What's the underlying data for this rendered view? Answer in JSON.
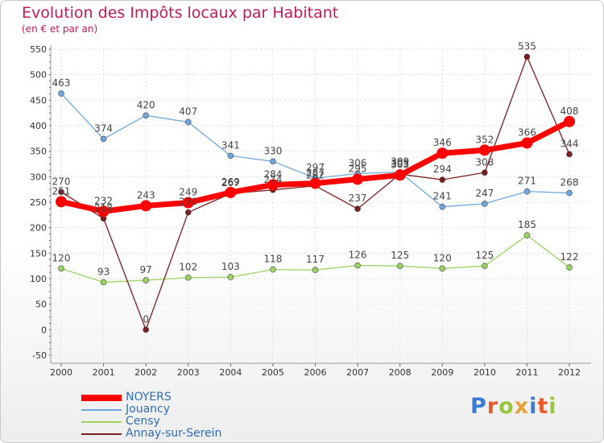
{
  "title": "Evolution des Impôts locaux par Habitant",
  "subtitle": "(en € et par an)",
  "logo_text": "Proxiti",
  "colors": {
    "title": "#c2185b",
    "legend_text": "#2e6db4",
    "logo": [
      "#3a7bd5",
      "#e95a2b",
      "#9ac63c",
      "#e9a23b",
      "#3a7bd5",
      "#e95a2b",
      "#9ac63c"
    ]
  },
  "chart_data": {
    "type": "line",
    "title": "Evolution des Impôts locaux par Habitant",
    "subtitle": "(en € et par an)",
    "xlabel": "",
    "ylabel": "",
    "x": [
      2000,
      2001,
      2002,
      2003,
      2004,
      2005,
      2006,
      2007,
      2008,
      2009,
      2010,
      2011,
      2012
    ],
    "ylim": [
      -50,
      550
    ],
    "yticks": [
      -50,
      0,
      50,
      100,
      150,
      200,
      250,
      300,
      350,
      400,
      450,
      500,
      550
    ],
    "grid": true,
    "legend_position": "bottom-left",
    "series": [
      {
        "name": "NOYERS",
        "color": "#ff0000",
        "emphasis": true,
        "values": [
          251,
          232,
          243,
          249,
          269,
          284,
          287,
          295,
          303,
          346,
          352,
          366,
          408
        ]
      },
      {
        "name": "Jouancy",
        "color": "#6fa8dc",
        "emphasis": false,
        "values": [
          463,
          374,
          420,
          407,
          341,
          330,
          297,
          306,
          309,
          241,
          247,
          271,
          268
        ]
      },
      {
        "name": "Censy",
        "color": "#9ad461",
        "emphasis": false,
        "values": [
          120,
          93,
          97,
          102,
          103,
          118,
          117,
          126,
          125,
          120,
          125,
          185,
          122
        ]
      },
      {
        "name": "Annay-sur-Serein",
        "color": "#7b1e1e",
        "emphasis": false,
        "values": [
          270,
          218,
          0,
          230,
          267,
          274,
          282,
          237,
          305,
          294,
          308,
          535,
          344
        ]
      }
    ]
  }
}
